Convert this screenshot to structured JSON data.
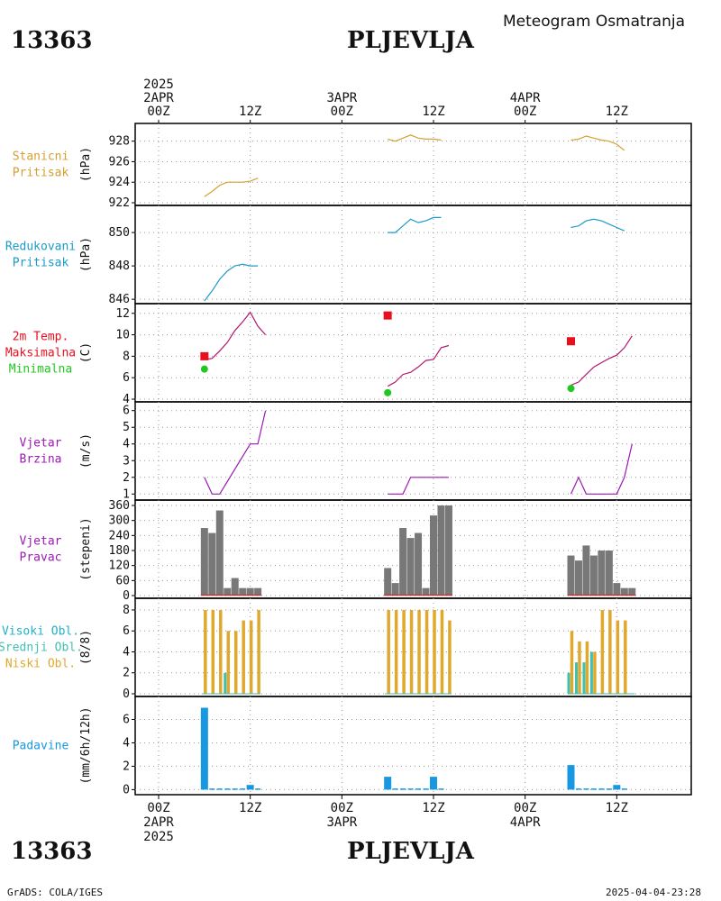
{
  "header": {
    "station_id": "13363",
    "station_name": "PLJEVLJA",
    "title": "Meteogram Osmatranja"
  },
  "footer": {
    "credit": "GrADS: COLA/IGES",
    "timestamp": "2025-04-04-23:28"
  },
  "time_axis": {
    "top_labels": [
      {
        "hour": 0,
        "lines": [
          "2025",
          "2APR",
          "00Z"
        ]
      },
      {
        "hour": 12,
        "lines": [
          "12Z"
        ]
      },
      {
        "hour": 24,
        "lines": [
          "3APR",
          "00Z"
        ]
      },
      {
        "hour": 36,
        "lines": [
          "12Z"
        ]
      },
      {
        "hour": 48,
        "lines": [
          "4APR",
          "00Z"
        ]
      },
      {
        "hour": 60,
        "lines": [
          "12Z"
        ]
      }
    ],
    "bottom_labels": [
      {
        "hour": 0,
        "lines": [
          "00Z",
          "2APR",
          "2025"
        ]
      },
      {
        "hour": 12,
        "lines": [
          "12Z"
        ]
      },
      {
        "hour": 24,
        "lines": [
          "00Z",
          "3APR"
        ]
      },
      {
        "hour": 36,
        "lines": [
          "12Z"
        ]
      },
      {
        "hour": 48,
        "lines": [
          "00Z",
          "4APR"
        ]
      },
      {
        "hour": 60,
        "lines": [
          "12Z"
        ]
      }
    ]
  },
  "colors": {
    "station_pressure": "#d4a030",
    "reduced_pressure": "#1a9bc8",
    "temperature_line": "#b4146e",
    "tmax_marker": "#e8101e",
    "tmin_marker": "#1ec81e",
    "wind_speed": "#9b19b4",
    "wind_direction_bar": "#787878",
    "wind_direction_base": "#c83232",
    "clouds_low": "#e0a82c",
    "clouds_mid": "#40c0b0",
    "clouds_high": "#20b0d8",
    "precip": "#1898e0",
    "label_station": "#d4a030",
    "label_reduced": "#1a9bc8",
    "label_temp": "#e8101e",
    "label_max": "#e8101e",
    "label_min": "#1ec81e",
    "label_wind": "#9b19b4",
    "label_high": "#20b0c8",
    "label_mid": "#40c0b0",
    "label_low": "#e0a82c",
    "label_precip": "#1898e0"
  },
  "chart_data": [
    {
      "type": "line",
      "id": "station_pressure",
      "label_lines": [
        "Stanicni",
        "Pritisak"
      ],
      "ylabel": "(hPa)",
      "ylim": [
        922,
        929.2
      ],
      "yticks": [
        922,
        924,
        926,
        928
      ],
      "series": [
        {
          "segments": [
            [
              [
                6,
                922.6
              ],
              [
                7,
                923.1
              ],
              [
                8,
                923.7
              ],
              [
                9,
                924.0
              ],
              [
                10,
                924.0
              ],
              [
                11,
                924.0
              ],
              [
                12,
                924.1
              ],
              [
                13,
                924.4
              ]
            ],
            [
              [
                30,
                928.2
              ],
              [
                31,
                928.0
              ],
              [
                32,
                928.3
              ],
              [
                33,
                928.6
              ],
              [
                34,
                928.3
              ],
              [
                35,
                928.2
              ],
              [
                36,
                928.2
              ],
              [
                37,
                928.1
              ]
            ],
            [
              [
                54,
                928.1
              ],
              [
                55,
                928.2
              ],
              [
                56,
                928.5
              ],
              [
                57,
                928.3
              ],
              [
                58,
                928.1
              ],
              [
                59,
                928.0
              ],
              [
                60,
                927.7
              ],
              [
                61,
                927.1
              ]
            ]
          ]
        }
      ]
    },
    {
      "type": "line",
      "id": "reduced_pressure",
      "label_lines": [
        "Redukovani",
        "Pritisak"
      ],
      "ylabel": "(hPa)",
      "ylim": [
        845.9,
        851.3
      ],
      "yticks": [
        846,
        848,
        850
      ],
      "series": [
        {
          "segments": [
            [
              [
                6,
                845.9
              ],
              [
                7,
                846.5
              ],
              [
                8,
                847.2
              ],
              [
                9,
                847.7
              ],
              [
                10,
                848.0
              ],
              [
                11,
                848.1
              ],
              [
                12,
                848.0
              ],
              [
                13,
                848.0
              ]
            ],
            [
              [
                30,
                850.0
              ],
              [
                31,
                850.0
              ],
              [
                32,
                850.4
              ],
              [
                33,
                850.8
              ],
              [
                34,
                850.6
              ],
              [
                35,
                850.7
              ],
              [
                36,
                850.9
              ],
              [
                37,
                850.9
              ]
            ],
            [
              [
                54,
                850.3
              ],
              [
                55,
                850.4
              ],
              [
                56,
                850.7
              ],
              [
                57,
                850.8
              ],
              [
                58,
                850.7
              ],
              [
                59,
                850.5
              ],
              [
                60,
                850.3
              ],
              [
                61,
                850.1
              ]
            ]
          ]
        }
      ]
    },
    {
      "type": "line",
      "id": "temperature",
      "label_lines": [
        "2m Temp.",
        "Maksimalna",
        "Minimalna"
      ],
      "ylabel": "(C)",
      "ylim": [
        4,
        12.4
      ],
      "yticks": [
        4,
        6,
        8,
        10,
        12
      ],
      "series": [
        {
          "segments": [
            [
              [
                6,
                7.7
              ],
              [
                7,
                7.8
              ],
              [
                8,
                8.5
              ],
              [
                9,
                9.3
              ],
              [
                10,
                10.4
              ],
              [
                11,
                11.2
              ],
              [
                12,
                12.1
              ],
              [
                13,
                10.8
              ],
              [
                14,
                10.0
              ]
            ],
            [
              [
                30,
                5.2
              ],
              [
                31,
                5.6
              ],
              [
                32,
                6.3
              ],
              [
                33,
                6.5
              ],
              [
                34,
                7.0
              ],
              [
                35,
                7.6
              ],
              [
                36,
                7.7
              ],
              [
                37,
                8.8
              ],
              [
                38,
                9.0
              ]
            ],
            [
              [
                54,
                5.3
              ],
              [
                55,
                5.6
              ],
              [
                56,
                6.3
              ],
              [
                57,
                7.0
              ],
              [
                58,
                7.4
              ],
              [
                59,
                7.8
              ],
              [
                60,
                8.1
              ],
              [
                61,
                8.8
              ],
              [
                62,
                9.9
              ]
            ]
          ]
        }
      ],
      "tmax": [
        [
          6,
          8.0
        ],
        [
          30,
          11.8
        ],
        [
          54,
          9.4
        ]
      ],
      "tmin": [
        [
          6,
          6.8
        ],
        [
          30,
          4.6
        ],
        [
          54,
          5.0
        ]
      ]
    },
    {
      "type": "line",
      "id": "wind_speed",
      "label_lines": [
        "Vjetar",
        "Brzina"
      ],
      "ylabel": "(m/s)",
      "ylim": [
        0.8,
        6.2
      ],
      "yticks": [
        1,
        2,
        3,
        4,
        5,
        6
      ],
      "series": [
        {
          "segments": [
            [
              [
                6,
                2
              ],
              [
                7,
                1
              ],
              [
                8,
                1
              ],
              [
                12,
                4
              ],
              [
                13,
                4
              ],
              [
                14,
                6
              ]
            ],
            [
              [
                30,
                1
              ],
              [
                32,
                1
              ],
              [
                33,
                2
              ],
              [
                38,
                2
              ]
            ],
            [
              [
                54,
                1
              ],
              [
                55,
                2
              ],
              [
                56,
                1
              ],
              [
                59,
                1
              ],
              [
                60,
                1
              ],
              [
                61,
                2
              ],
              [
                62,
                4
              ]
            ]
          ]
        }
      ]
    },
    {
      "type": "bar",
      "id": "wind_direction",
      "label_lines": [
        "Vjetar",
        "Pravac"
      ],
      "ylabel": "(stepeni)",
      "ylim": [
        0,
        360
      ],
      "yticks": [
        0,
        60,
        120,
        180,
        240,
        300,
        360
      ],
      "x": [
        6,
        7,
        8,
        9,
        10,
        11,
        12,
        13,
        30,
        31,
        32,
        33,
        34,
        35,
        36,
        37,
        38,
        54,
        55,
        56,
        57,
        58,
        59,
        60,
        61,
        62
      ],
      "values": [
        270,
        250,
        340,
        30,
        70,
        30,
        30,
        30,
        110,
        50,
        270,
        230,
        250,
        30,
        320,
        360,
        360,
        160,
        140,
        200,
        160,
        180,
        180,
        50,
        30,
        30
      ]
    },
    {
      "type": "bar",
      "id": "clouds",
      "label_lines": [
        "Visoki Obl.",
        "Srednji Obl.",
        "Niski Obl."
      ],
      "ylabel": "(8/8)",
      "ylim": [
        0,
        8.6
      ],
      "yticks": [
        0,
        2,
        4,
        6,
        8
      ],
      "x": [
        6,
        7,
        8,
        9,
        10,
        11,
        12,
        13,
        30,
        31,
        32,
        33,
        34,
        35,
        36,
        37,
        38,
        54,
        55,
        56,
        57,
        58,
        59,
        60,
        61,
        62
      ],
      "series": [
        {
          "name_key": "low",
          "values": [
            8,
            8,
            8,
            6,
            6,
            7,
            7,
            8,
            8,
            8,
            8,
            8,
            8,
            8,
            8,
            8,
            7,
            6,
            5,
            5,
            4,
            8,
            8,
            7,
            7,
            0
          ]
        },
        {
          "name_key": "mid",
          "values": [
            0,
            0,
            0,
            2,
            0,
            0,
            0,
            0,
            0,
            0,
            0,
            0,
            0,
            0,
            0,
            0,
            0,
            2,
            3,
            3,
            4,
            0,
            0,
            0,
            0,
            0
          ]
        },
        {
          "name_key": "high",
          "values": [
            0,
            0,
            0,
            0,
            0,
            0,
            0,
            0,
            0,
            0,
            0,
            0,
            0,
            0,
            0,
            0,
            0,
            0,
            0,
            0,
            0,
            0,
            0,
            0,
            0,
            0
          ]
        }
      ]
    },
    {
      "type": "bar",
      "id": "precip",
      "label_lines": [
        "Padavine"
      ],
      "ylabel": "(mm/6h/12h)",
      "ylim": [
        -0.2,
        7.5
      ],
      "yticks": [
        0,
        2,
        4,
        6
      ],
      "x": [
        6,
        7,
        8,
        9,
        10,
        11,
        12,
        13,
        30,
        31,
        32,
        33,
        34,
        35,
        36,
        37,
        54,
        55,
        56,
        57,
        58,
        59,
        60,
        61
      ],
      "values": [
        7.0,
        0.1,
        0.1,
        0.1,
        0.1,
        0.1,
        0.4,
        0.1,
        1.1,
        0.1,
        0.1,
        0.1,
        0.1,
        0.1,
        1.1,
        0.1,
        2.1,
        0.1,
        0.1,
        0.1,
        0.1,
        0.1,
        0.4,
        0.1
      ]
    }
  ]
}
